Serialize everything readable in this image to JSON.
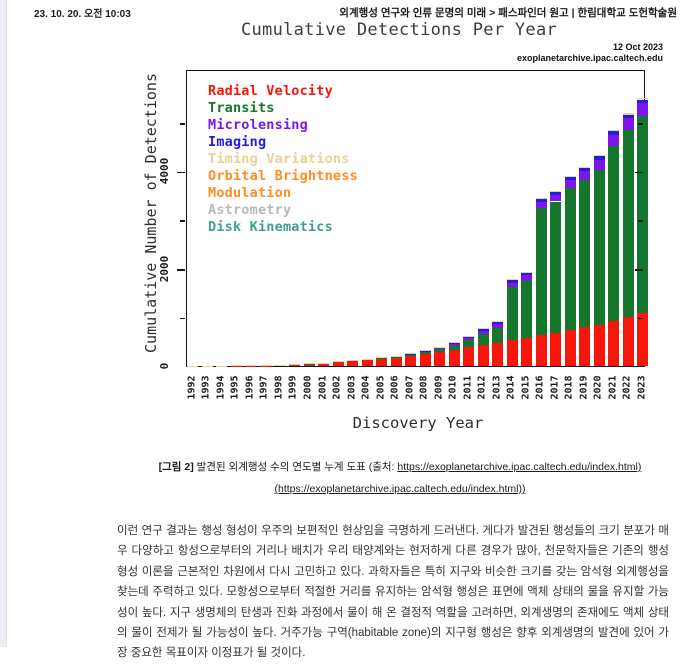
{
  "header": {
    "timestamp": "23. 10. 20. 오전 10:03",
    "breadcrumb": "외계행성 연구와 인류 문명의 미래 > 패스파인더 원고 | 한림대학교 도헌학술원"
  },
  "chart": {
    "title": "Cumulative Detections Per Year",
    "date_stamp": "12 Oct 2023",
    "source": "exoplanetarchive.ipac.caltech.edu",
    "xlabel": "Discovery Year",
    "ylabel": "Cumulative Number of Detections"
  },
  "chart_data": {
    "type": "bar",
    "stacked": true,
    "title": "Cumulative Detections Per Year",
    "xlabel": "Discovery Year",
    "ylabel": "Cumulative Number of Detections",
    "ylim": [
      0,
      6100
    ],
    "yticks_major": [
      0,
      2000,
      4000
    ],
    "yticks_minor": [
      1000,
      3000,
      5000
    ],
    "grid": false,
    "legend_position": "upper left",
    "categories": [
      1992,
      1993,
      1994,
      1995,
      1996,
      1997,
      1998,
      1999,
      2000,
      2001,
      2002,
      2003,
      2004,
      2005,
      2006,
      2007,
      2008,
      2009,
      2010,
      2011,
      2012,
      2013,
      2014,
      2015,
      2016,
      2017,
      2018,
      2019,
      2020,
      2021,
      2022,
      2023
    ],
    "series": [
      {
        "name": "Radial Velocity",
        "color": "#f8150a",
        "values": [
          0,
          0,
          0,
          1,
          6,
          7,
          13,
          25,
          41,
          53,
          83,
          106,
          128,
          155,
          175,
          208,
          247,
          290,
          332,
          396,
          435,
          480,
          540,
          585,
          640,
          685,
          740,
          795,
          850,
          920,
          1010,
          1080
        ]
      },
      {
        "name": "Transits",
        "color": "#15772e",
        "values": [
          0,
          0,
          0,
          0,
          0,
          0,
          0,
          1,
          1,
          2,
          3,
          4,
          8,
          12,
          18,
          26,
          36,
          53,
          85,
          136,
          225,
          305,
          1080,
          1169,
          2611,
          2694,
          2916,
          3029,
          3186,
          3602,
          3832,
          4060
        ]
      },
      {
        "name": "Microlensing",
        "color": "#7c17e8",
        "values": [
          0,
          0,
          0,
          0,
          0,
          0,
          0,
          0,
          0,
          0,
          0,
          0,
          1,
          4,
          7,
          11,
          17,
          25,
          36,
          49,
          62,
          77,
          92,
          110,
          125,
          140,
          160,
          185,
          205,
          230,
          250,
          263
        ]
      },
      {
        "name": "Imaging",
        "color": "#241bdf",
        "values": [
          0,
          0,
          0,
          0,
          0,
          0,
          0,
          0,
          0,
          0,
          0,
          0,
          2,
          3,
          4,
          7,
          12,
          19,
          26,
          31,
          36,
          42,
          48,
          52,
          56,
          60,
          63,
          64,
          66,
          68,
          70,
          71
        ]
      },
      {
        "name": "Other (Timing Variations / Orbital Brightness Modulation / Astrometry / Disk Kinematics)",
        "color": "#e9d192",
        "values": [
          2,
          3,
          4,
          4,
          5,
          5,
          5,
          5,
          5,
          5,
          5,
          6,
          7,
          7,
          7,
          8,
          9,
          10,
          11,
          13,
          14,
          16,
          18,
          19,
          20,
          21,
          22,
          23,
          24,
          25,
          26,
          26
        ]
      }
    ],
    "legend": [
      {
        "label": "Radial Velocity",
        "color": "#f8150a"
      },
      {
        "label": "Transits",
        "color": "#15772e"
      },
      {
        "label": "Microlensing",
        "color": "#7c17e8"
      },
      {
        "label": "Imaging",
        "color": "#241bdf"
      },
      {
        "label": "Timing Variations",
        "color": "#e9d192"
      },
      {
        "label": "Orbital Brightness Modulation",
        "color": "#ff8c1f"
      },
      {
        "label": "Astrometry",
        "color": "#b9b9b9"
      },
      {
        "label": "Disk Kinematics",
        "color": "#3ea18e"
      }
    ]
  },
  "caption": {
    "tag": "[그림 2]",
    "text": " 발견된 외계행성 수의 연도별 누계 도표 (출처: ",
    "link1": "https://exoplanetarchive.ipac.caltech.edu/index.html)",
    "link2": "(https://exoplanetarchive.ipac.caltech.edu/index.html))"
  },
  "body": {
    "paragraph": "이런 연구 결과는 행성 형성이 우주의 보편적인 현상임을 극명하게 드러낸다. 게다가 발견된 행성들의 크기 분포가 매우 다양하고 항성으로부터의 거리나 배치가 우리 태양계와는 현저하게 다른 경우가 많아, 천문학자들은 기존의 행성 형성 이론을 근본적인 차원에서 다시 고민하고 있다. 과학자들은 특히 지구와 비슷한 크기를 갖는 암석형 외계행성을 찾는데 주력하고 있다. 모항성으로부터 적절한 거리를 유지하는 암석형 행성은 표면에 액체 상태의 물을 유지할 가능성이 높다. 지구 생명체의 탄생과 진화 과정에서 물이 해 온 결정적 역할을 고려하면, 외계생명의 존재에도 액체 상태의 물이 전제가 될 가능성이 높다. 거주가능 구역(habitable zone)의 지구형 행성은 향후 외계생명의 발견에 있어 가장 중요한 목표이자 이정표가 될 것이다."
  }
}
